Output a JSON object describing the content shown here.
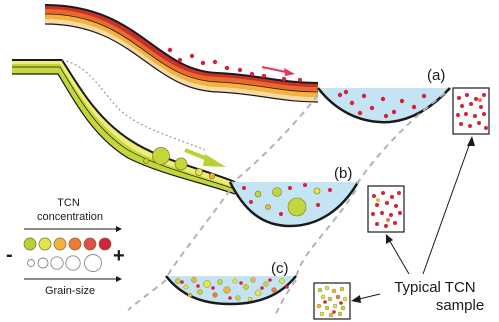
{
  "panels": {
    "a": "(a)",
    "b": "(b)",
    "c": "(c)"
  },
  "legend": {
    "concentration": "TCN\nconcentration",
    "grain_size": "Grain-size",
    "minus": "-",
    "plus": "+"
  },
  "sample_label": "Typical TCN\nsample",
  "colors": {
    "water": "#c4e4f3",
    "outline": "#1a1a1a",
    "dash": "#b3b3b3",
    "arrow_red": "#e8365a",
    "arrow_green": "#b5d334",
    "tcn_scale": [
      "#b5d334",
      "#e3e64a",
      "#f4b13c",
      "#ee7a33",
      "#e14d47",
      "#d6213b"
    ],
    "strata_warm": [
      "#f6d9a6",
      "#f4b13c",
      "#ea6a2c",
      "#c6322a"
    ],
    "strata_green": [
      "#f0ec7a",
      "#c3d63a"
    ]
  }
}
